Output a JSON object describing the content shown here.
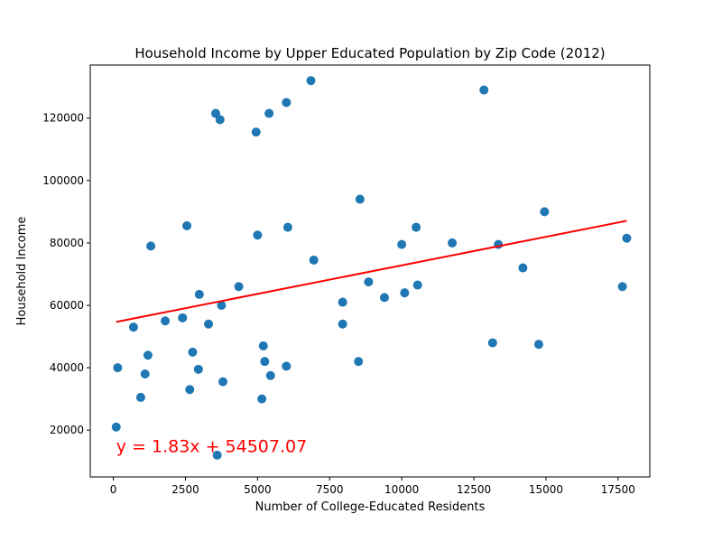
{
  "chart_data": {
    "type": "scatter",
    "title": "Household Income by Upper Educated Population by Zip Code (2012)",
    "xlabel": "Number of College-Educated Residents",
    "ylabel": "Household Income",
    "xlim": [
      -800,
      18600
    ],
    "ylim": [
      5000,
      137000
    ],
    "xticks": [
      0,
      2500,
      5000,
      7500,
      10000,
      12500,
      15000,
      17500
    ],
    "xtick_labels": [
      "0",
      "2500",
      "5000",
      "7500",
      "10000",
      "12500",
      "15000",
      "17500"
    ],
    "yticks": [
      20000,
      40000,
      60000,
      80000,
      100000,
      120000
    ],
    "ytick_labels": [
      "20000",
      "40000",
      "60000",
      "80000",
      "100000",
      "120000"
    ],
    "grid": false,
    "points": [
      {
        "x": 100,
        "y": 21000
      },
      {
        "x": 150,
        "y": 40000
      },
      {
        "x": 700,
        "y": 53000
      },
      {
        "x": 950,
        "y": 30500
      },
      {
        "x": 1100,
        "y": 38000
      },
      {
        "x": 1200,
        "y": 44000
      },
      {
        "x": 1300,
        "y": 79000
      },
      {
        "x": 1800,
        "y": 55000
      },
      {
        "x": 2400,
        "y": 56000
      },
      {
        "x": 2550,
        "y": 85500
      },
      {
        "x": 2650,
        "y": 33000
      },
      {
        "x": 2750,
        "y": 45000
      },
      {
        "x": 2950,
        "y": 39500
      },
      {
        "x": 2980,
        "y": 63500
      },
      {
        "x": 3300,
        "y": 54000
      },
      {
        "x": 3550,
        "y": 121500
      },
      {
        "x": 3600,
        "y": 12000
      },
      {
        "x": 3700,
        "y": 119500
      },
      {
        "x": 3750,
        "y": 60000
      },
      {
        "x": 3800,
        "y": 35500
      },
      {
        "x": 4350,
        "y": 66000
      },
      {
        "x": 4950,
        "y": 115500
      },
      {
        "x": 5000,
        "y": 82500
      },
      {
        "x": 5150,
        "y": 30000
      },
      {
        "x": 5200,
        "y": 47000
      },
      {
        "x": 5250,
        "y": 42000
      },
      {
        "x": 5400,
        "y": 121500
      },
      {
        "x": 5450,
        "y": 37500
      },
      {
        "x": 6000,
        "y": 125000
      },
      {
        "x": 6000,
        "y": 40500
      },
      {
        "x": 6050,
        "y": 85000
      },
      {
        "x": 6850,
        "y": 132000
      },
      {
        "x": 6950,
        "y": 74500
      },
      {
        "x": 7950,
        "y": 61000
      },
      {
        "x": 7950,
        "y": 54000
      },
      {
        "x": 8500,
        "y": 42000
      },
      {
        "x": 8550,
        "y": 94000
      },
      {
        "x": 8850,
        "y": 67500
      },
      {
        "x": 9400,
        "y": 62500
      },
      {
        "x": 10000,
        "y": 79500
      },
      {
        "x": 10100,
        "y": 64000
      },
      {
        "x": 10500,
        "y": 85000
      },
      {
        "x": 10550,
        "y": 66500
      },
      {
        "x": 11750,
        "y": 80000
      },
      {
        "x": 12850,
        "y": 129000
      },
      {
        "x": 13150,
        "y": 48000
      },
      {
        "x": 13350,
        "y": 79500
      },
      {
        "x": 14200,
        "y": 72000
      },
      {
        "x": 14750,
        "y": 47500
      },
      {
        "x": 14950,
        "y": 90000
      },
      {
        "x": 17650,
        "y": 66000
      },
      {
        "x": 17800,
        "y": 81500
      }
    ],
    "regression": {
      "slope": 1.83,
      "intercept": 54507.07,
      "x_range": [
        100,
        17800
      ],
      "equation_label": "y = 1.83x + 54507.07",
      "label_position": {
        "x": 100,
        "y": 13000
      }
    },
    "colors": {
      "points": "#1f77b4",
      "regression_line": "#ff0000",
      "equation_text": "#ff0000",
      "axes": "#000000"
    }
  }
}
